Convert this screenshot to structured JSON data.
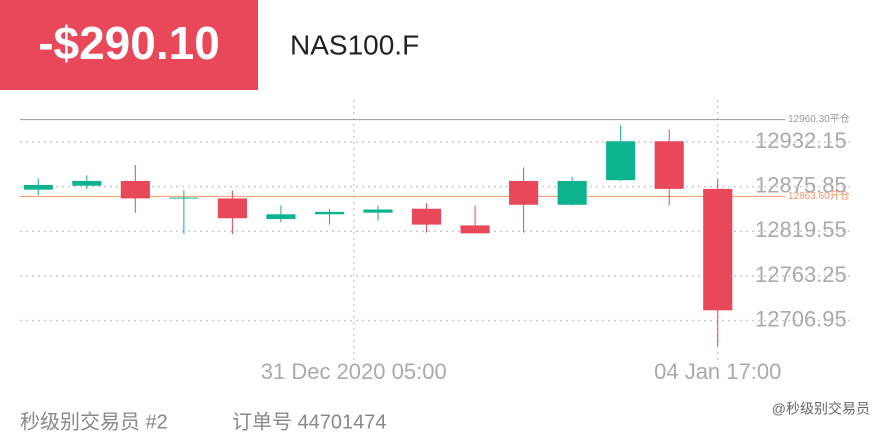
{
  "header": {
    "pnl": "-$290.10",
    "symbol": "NAS100.F"
  },
  "footer": {
    "trader": "秒级别交易员 #2",
    "order": "订单号 44701474",
    "watermark": "@秒级别交易员"
  },
  "chart_data": {
    "type": "candlestick",
    "x": [
      0,
      1,
      2,
      3,
      4,
      5,
      6,
      7,
      8,
      9,
      10,
      11,
      12,
      13,
      14
    ],
    "open": [
      12872,
      12877,
      12883,
      12861,
      12861,
      12835,
      12841,
      12843,
      12848,
      12827,
      12883,
      12853,
      12884,
      12933,
      12873
    ],
    "high": [
      12886,
      12890,
      12903,
      12871,
      12871,
      12852,
      12848,
      12852,
      12855,
      12852,
      12900,
      12888,
      12953,
      12948,
      12885
    ],
    "low": [
      12865,
      12873,
      12843,
      12816,
      12816,
      12831,
      12828,
      12833,
      12818,
      12817,
      12818,
      12852,
      12883,
      12852,
      12675
    ],
    "close": [
      12878,
      12883,
      12861,
      12862,
      12836,
      12841,
      12844,
      12847,
      12828,
      12817,
      12853,
      12883,
      12933,
      12873,
      12720
    ],
    "up_color": "#0db28f",
    "down_color": "#e8485a",
    "xlim": [
      -0.5,
      14.5
    ],
    "xticks": [
      {
        "value": 6.5,
        "label": "31 Dec 2020 05:00"
      },
      {
        "value": 14,
        "label": "04 Jan 17:00"
      }
    ],
    "ylim": [
      12670,
      12985
    ],
    "yticks": [
      12932.15,
      12875.85,
      12819.55,
      12763.25,
      12706.95
    ],
    "grid": true,
    "ref_lines": [
      {
        "value": 12960.3,
        "label": "12960.30平仓",
        "color": "#999999"
      },
      {
        "value": 12863.6,
        "label": "12863.60开仓",
        "color": "#f0956a"
      }
    ]
  }
}
